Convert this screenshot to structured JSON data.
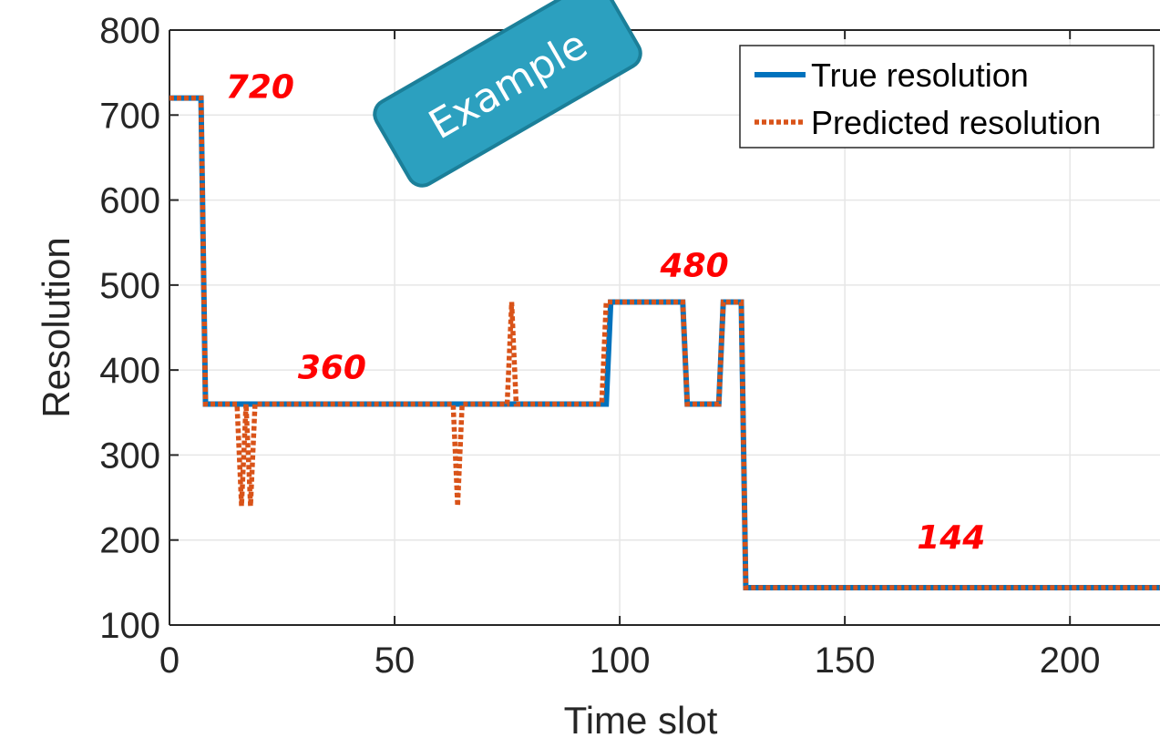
{
  "chart_data": {
    "type": "line",
    "xlabel": "Time slot",
    "ylabel": "Resolution",
    "xlim": [
      0,
      220
    ],
    "ylim": [
      100,
      800
    ],
    "xticks": [
      0,
      50,
      100,
      150,
      200
    ],
    "yticks": [
      100,
      200,
      300,
      400,
      500,
      600,
      700,
      800
    ],
    "grid": true,
    "legend_position": "top-right",
    "series": [
      {
        "name": "True resolution",
        "color": "#0072BD",
        "style": "solid",
        "x": [
          0,
          7,
          8,
          97,
          98,
          114,
          115,
          122,
          123,
          127,
          128,
          220
        ],
        "y": [
          720,
          720,
          360,
          360,
          480,
          480,
          360,
          360,
          480,
          480,
          144,
          144
        ]
      },
      {
        "name": "Predicted resolution",
        "color": "#D95319",
        "style": "dotted",
        "x": [
          0,
          7,
          8,
          15,
          16,
          17,
          18,
          19,
          20,
          63,
          64,
          65,
          75,
          76,
          77,
          96,
          97,
          114,
          115,
          122,
          123,
          127,
          128,
          220
        ],
        "y": [
          720,
          720,
          360,
          360,
          240,
          360,
          240,
          360,
          360,
          360,
          240,
          360,
          360,
          480,
          360,
          360,
          480,
          480,
          360,
          360,
          480,
          480,
          144,
          144
        ]
      }
    ],
    "annotations": [
      {
        "text": "720",
        "x": 12.5,
        "y": 720,
        "color": "#FF0000"
      },
      {
        "text": "360",
        "x": 28.5,
        "y": 390,
        "color": "#FF0000"
      },
      {
        "text": "480",
        "x": 109,
        "y": 510,
        "color": "#FF0000"
      },
      {
        "text": "144",
        "x": 166,
        "y": 190,
        "color": "#FF0000"
      }
    ],
    "badge": {
      "text": "Example",
      "fill": "#2CA0BF",
      "stroke": "#1B7F99"
    }
  }
}
